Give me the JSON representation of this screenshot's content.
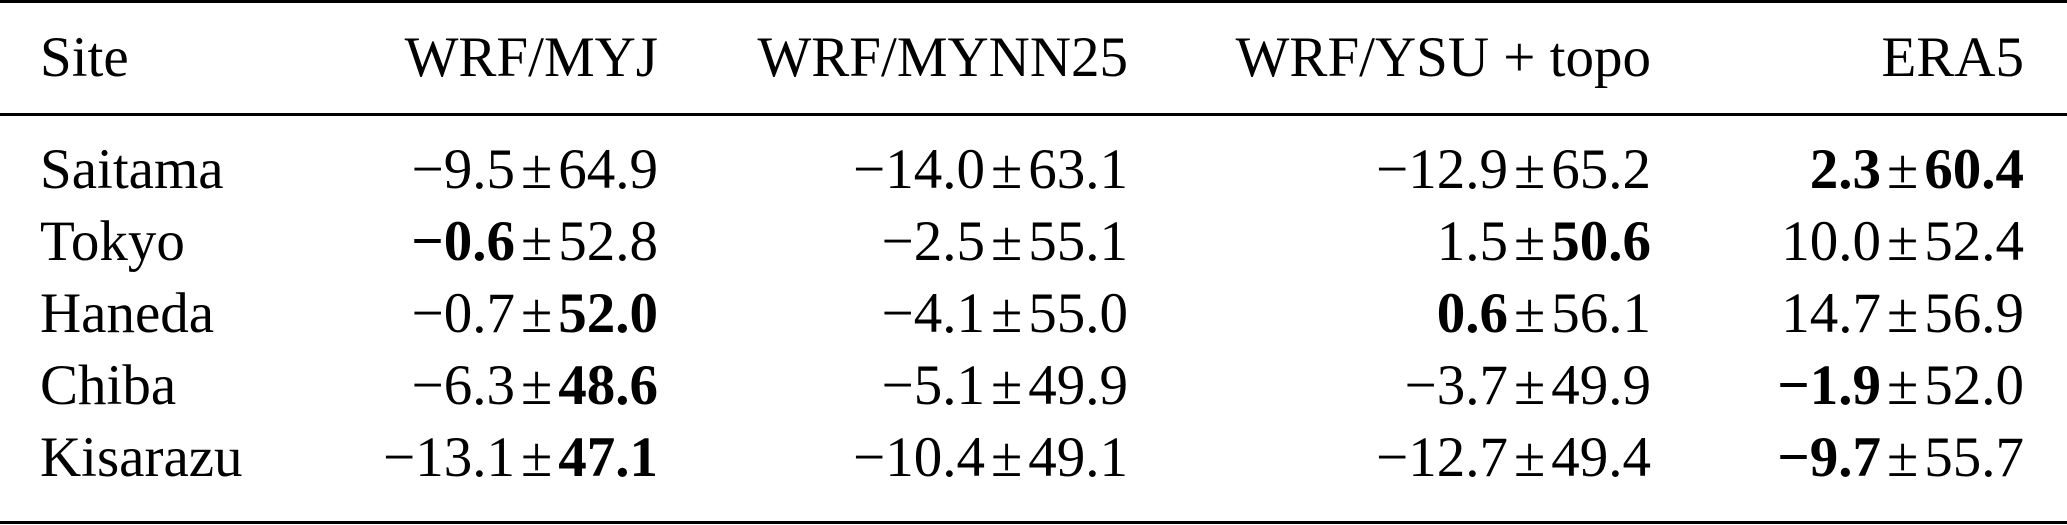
{
  "table": {
    "headers": [
      "Site",
      "WRF/MYJ",
      "WRF/MYNN25",
      "WRF/YSU + topo",
      "ERA5"
    ],
    "rows": [
      {
        "site": "Saitama",
        "cells": [
          {
            "mean": "−9.5",
            "sd": "64.9",
            "mean_bold": false,
            "sd_bold": false
          },
          {
            "mean": "−14.0",
            "sd": "63.1",
            "mean_bold": false,
            "sd_bold": false
          },
          {
            "mean": "−12.9",
            "sd": "65.2",
            "mean_bold": false,
            "sd_bold": false
          },
          {
            "mean": "2.3",
            "sd": "60.4",
            "mean_bold": true,
            "sd_bold": true
          }
        ]
      },
      {
        "site": "Tokyo",
        "cells": [
          {
            "mean": "−0.6",
            "sd": "52.8",
            "mean_bold": true,
            "sd_bold": false
          },
          {
            "mean": "−2.5",
            "sd": "55.1",
            "mean_bold": false,
            "sd_bold": false
          },
          {
            "mean": "1.5",
            "sd": "50.6",
            "mean_bold": false,
            "sd_bold": true
          },
          {
            "mean": "10.0",
            "sd": "52.4",
            "mean_bold": false,
            "sd_bold": false
          }
        ]
      },
      {
        "site": "Haneda",
        "cells": [
          {
            "mean": "−0.7",
            "sd": "52.0",
            "mean_bold": false,
            "sd_bold": true
          },
          {
            "mean": "−4.1",
            "sd": "55.0",
            "mean_bold": false,
            "sd_bold": false
          },
          {
            "mean": "0.6",
            "sd": "56.1",
            "mean_bold": true,
            "sd_bold": false
          },
          {
            "mean": "14.7",
            "sd": "56.9",
            "mean_bold": false,
            "sd_bold": false
          }
        ]
      },
      {
        "site": "Chiba",
        "cells": [
          {
            "mean": "−6.3",
            "sd": "48.6",
            "mean_bold": false,
            "sd_bold": true
          },
          {
            "mean": "−5.1",
            "sd": "49.9",
            "mean_bold": false,
            "sd_bold": false
          },
          {
            "mean": "−3.7",
            "sd": "49.9",
            "mean_bold": false,
            "sd_bold": false
          },
          {
            "mean": "−1.9",
            "sd": "52.0",
            "mean_bold": true,
            "sd_bold": false
          }
        ]
      },
      {
        "site": "Kisarazu",
        "cells": [
          {
            "mean": "−13.1",
            "sd": "47.1",
            "mean_bold": false,
            "sd_bold": true
          },
          {
            "mean": "−10.4",
            "sd": "49.1",
            "mean_bold": false,
            "sd_bold": false
          },
          {
            "mean": "−12.7",
            "sd": "49.4",
            "mean_bold": false,
            "sd_bold": false
          },
          {
            "mean": "−9.7",
            "sd": "55.7",
            "mean_bold": true,
            "sd_bold": false
          }
        ]
      }
    ],
    "pm_symbol": "±"
  }
}
